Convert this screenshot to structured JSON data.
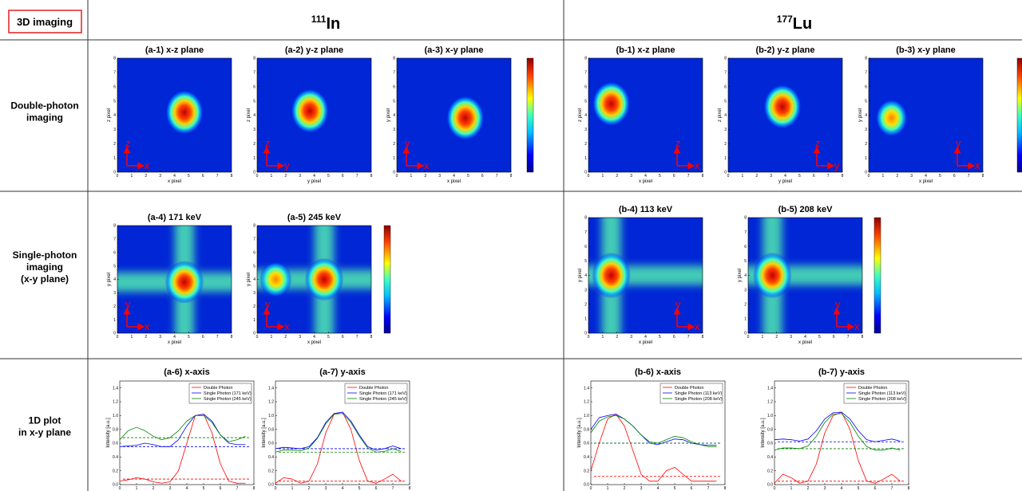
{
  "corner_label": "3D imaging",
  "rows": [
    {
      "lines": [
        "Double-photon",
        "imaging"
      ]
    },
    {
      "lines": [
        "Single-photon",
        "imaging",
        "(x-y plane)"
      ]
    },
    {
      "lines": [
        "1D plot",
        "in x-y plane"
      ]
    }
  ],
  "sections": [
    {
      "isotope_mass": "111",
      "isotope": "In",
      "double_photon": [
        {
          "type": "heatmap",
          "title": "(a-1) x-z plane",
          "xlabel": "x pixel",
          "ylabel": "z pixel",
          "xlim": [
            0,
            8
          ],
          "ylim": [
            0,
            8
          ],
          "xticks": [
            0,
            1,
            2,
            3,
            4,
            5,
            6,
            7,
            8
          ],
          "yticks": [
            0,
            1,
            2,
            3,
            4,
            5,
            6,
            7,
            8
          ],
          "peaks": [
            [
              4.7,
              4.2,
              1
            ]
          ],
          "arrow_labels": [
            "z",
            "x"
          ]
        },
        {
          "type": "heatmap",
          "title": "(a-2) y-z plane",
          "xlabel": "y pixel",
          "ylabel": "z pixel",
          "xlim": [
            0,
            8
          ],
          "ylim": [
            0,
            8
          ],
          "xticks": [
            0,
            1,
            2,
            3,
            4,
            5,
            6,
            7,
            8
          ],
          "yticks": [
            0,
            1,
            2,
            3,
            4,
            5,
            6,
            7,
            8
          ],
          "peaks": [
            [
              3.7,
              4.3,
              1
            ]
          ],
          "arrow_labels": [
            "z",
            "y"
          ]
        },
        {
          "type": "heatmap",
          "title": "(a-3) x-y plane",
          "xlabel": "x pixel",
          "ylabel": "y pixel",
          "xlim": [
            0,
            8
          ],
          "ylim": [
            0,
            8
          ],
          "xticks": [
            0,
            1,
            2,
            3,
            4,
            5,
            6,
            7,
            8
          ],
          "yticks": [
            0,
            1,
            2,
            3,
            4,
            5,
            6,
            7,
            8
          ],
          "peaks": [
            [
              4.8,
              3.8,
              1
            ]
          ],
          "arrow_labels": [
            "y",
            "x"
          ]
        }
      ],
      "single_photon": [
        {
          "type": "heatmap",
          "title": "(a-4) 171 keV",
          "xlabel": "x pixel",
          "ylabel": "y pixel",
          "xlim": [
            0,
            8
          ],
          "ylim": [
            0,
            8
          ],
          "xticks": [
            0,
            1,
            2,
            3,
            4,
            5,
            6,
            7,
            8
          ],
          "yticks": [
            0,
            1,
            2,
            3,
            4,
            5,
            6,
            7,
            8
          ],
          "bands": [
            4.7,
            3.8
          ],
          "peaks": [
            [
              4.7,
              3.8,
              1
            ]
          ],
          "arrow_labels": [
            "y",
            "x"
          ]
        },
        {
          "type": "heatmap",
          "title": "(a-5) 245 keV",
          "xlabel": "x pixel",
          "ylabel": "y pixel",
          "xlim": [
            0,
            8
          ],
          "ylim": [
            0,
            8
          ],
          "xticks": [
            0,
            1,
            2,
            3,
            4,
            5,
            6,
            7,
            8
          ],
          "yticks": [
            0,
            1,
            2,
            3,
            4,
            5,
            6,
            7,
            8
          ],
          "bands": [
            4.7,
            4
          ],
          "peaks": [
            [
              4.7,
              4,
              1
            ],
            [
              1.3,
              4,
              0.6
            ]
          ],
          "arrow_labels": [
            "y",
            "x"
          ]
        }
      ],
      "profiles": [
        {
          "type": "line",
          "title": "(a-6) x-axis",
          "ylabel": "Intensity [a.u.]",
          "x": [
            0,
            0.5,
            1,
            1.5,
            2,
            2.5,
            3,
            3.5,
            4,
            4.5,
            5,
            5.5,
            6,
            6.5,
            7,
            7.5
          ],
          "xlim": [
            0,
            8
          ],
          "xticks": [
            0,
            1,
            2,
            3,
            4,
            5,
            6,
            7,
            8
          ],
          "ylim": [
            0,
            1.5
          ],
          "yticks": [
            {
              "value": 0,
              "label": "0.0"
            },
            0.2,
            0.4,
            0.6,
            0.8,
            {
              "value": 1,
              "label": "1.0"
            },
            1.2,
            1.4
          ],
          "series": [
            {
              "name": "Double Photon",
              "color": "#ff0000",
              "mean": 0.08,
              "values": [
                0.05,
                0.07,
                0.1,
                0.08,
                0.04,
                0.02,
                0.04,
                0.2,
                0.6,
                1.0,
                1.02,
                0.75,
                0.3,
                0.05,
                0.02,
                0.02
              ]
            },
            {
              "name": "Single Photon (171 keV)",
              "color": "#0000ff",
              "mean": 0.55,
              "values": [
                0.55,
                0.56,
                0.57,
                0.6,
                0.58,
                0.55,
                0.55,
                0.65,
                0.85,
                1.0,
                1.02,
                0.92,
                0.72,
                0.6,
                0.58,
                0.58
              ]
            },
            {
              "name": "Single Photon (245 keV)",
              "color": "#008000",
              "mean": 0.68,
              "values": [
                0.65,
                0.78,
                0.83,
                0.78,
                0.7,
                0.65,
                0.68,
                0.78,
                0.92,
                1.0,
                1.0,
                0.9,
                0.72,
                0.62,
                0.65,
                0.7
              ]
            }
          ]
        },
        {
          "type": "line",
          "title": "(a-7) y-axis",
          "ylabel": "Intensity [a.u.]",
          "x": [
            0,
            0.5,
            1,
            1.5,
            2,
            2.5,
            3,
            3.5,
            4,
            4.5,
            5,
            5.5,
            6,
            6.5,
            7,
            7.5
          ],
          "xlim": [
            0,
            8
          ],
          "xticks": [
            0,
            1,
            2,
            3,
            4,
            5,
            6,
            7,
            8
          ],
          "ylim": [
            0,
            1.5
          ],
          "yticks": [
            {
              "value": 0,
              "label": "0.0"
            },
            0.2,
            0.4,
            0.6,
            0.8,
            {
              "value": 1,
              "label": "1.0"
            },
            1.2,
            1.4
          ],
          "series": [
            {
              "name": "Double Photon",
              "color": "#ff0000",
              "mean": 0.05,
              "values": [
                0.02,
                0.1,
                0.08,
                0.02,
                0.05,
                0.3,
                0.75,
                1.02,
                1.05,
                0.8,
                0.35,
                0.05,
                0.02,
                0.08,
                0.15,
                0.05
              ]
            },
            {
              "name": "Single Photon (171 keV)",
              "color": "#0000ff",
              "mean": 0.52,
              "values": [
                0.52,
                0.54,
                0.53,
                0.52,
                0.55,
                0.68,
                0.9,
                1.03,
                1.05,
                0.92,
                0.72,
                0.55,
                0.5,
                0.52,
                0.56,
                0.52
              ]
            },
            {
              "name": "Single Photon (245 keV)",
              "color": "#008000",
              "mean": 0.47,
              "values": [
                0.47,
                0.5,
                0.5,
                0.49,
                0.53,
                0.67,
                0.88,
                1.02,
                1.03,
                0.9,
                0.7,
                0.53,
                0.47,
                0.48,
                0.52,
                0.48
              ]
            }
          ]
        }
      ]
    },
    {
      "isotope_mass": "177",
      "isotope": "Lu",
      "double_photon": [
        {
          "type": "heatmap",
          "title": "(b-1) x-z plane",
          "xlabel": "x pixel",
          "ylabel": "z pixel",
          "xlim": [
            0,
            8
          ],
          "ylim": [
            0,
            8
          ],
          "xticks": [
            0,
            1,
            2,
            3,
            4,
            5,
            6,
            7,
            8
          ],
          "yticks": [
            0,
            1,
            2,
            3,
            4,
            5,
            6,
            7,
            8
          ],
          "peaks": [
            [
              1.6,
              4.8,
              1
            ]
          ],
          "arrow_labels": [
            "z",
            "x"
          ]
        },
        {
          "type": "heatmap",
          "title": "(b-2) y-z plane",
          "xlabel": "y pixel",
          "ylabel": "z pixel",
          "xlim": [
            0,
            8
          ],
          "ylim": [
            0,
            8
          ],
          "xticks": [
            0,
            1,
            2,
            3,
            4,
            5,
            6,
            7,
            8
          ],
          "yticks": [
            0,
            1,
            2,
            3,
            4,
            5,
            6,
            7,
            8
          ],
          "peaks": [
            [
              3.8,
              4.6,
              1
            ]
          ],
          "arrow_labels": [
            "z",
            "y"
          ]
        },
        {
          "type": "heatmap",
          "title": "(b-3) x-y plane",
          "xlabel": "x pixel",
          "ylabel": "y pixel",
          "xlim": [
            0,
            8
          ],
          "ylim": [
            0,
            8
          ],
          "xticks": [
            0,
            1,
            2,
            3,
            4,
            5,
            6,
            7,
            8
          ],
          "yticks": [
            0,
            1,
            2,
            3,
            4,
            5,
            6,
            7,
            8
          ],
          "peaks": [
            [
              1.6,
              3.8,
              0.6
            ]
          ],
          "arrow_labels": [
            "y",
            "x"
          ]
        }
      ],
      "single_photon": [
        {
          "type": "heatmap",
          "title": "(b-4) 113 keV",
          "xlabel": "x pixel",
          "ylabel": "y pixel",
          "xlim": [
            0,
            8
          ],
          "ylim": [
            0,
            8
          ],
          "xticks": [
            0,
            1,
            2,
            3,
            4,
            5,
            6,
            7,
            8
          ],
          "yticks": [
            0,
            1,
            2,
            3,
            4,
            5,
            6,
            7,
            8
          ],
          "bands": [
            1.6,
            4
          ],
          "peaks": [
            [
              1.6,
              4,
              1
            ]
          ],
          "arrow_labels": [
            "y",
            "x"
          ]
        },
        {
          "type": "heatmap",
          "title": "(b-5) 208 keV",
          "xlabel": "x pixel",
          "ylabel": "y pixel",
          "xlim": [
            0,
            8
          ],
          "ylim": [
            0,
            8
          ],
          "xticks": [
            0,
            1,
            2,
            3,
            4,
            5,
            6,
            7,
            8
          ],
          "yticks": [
            0,
            1,
            2,
            3,
            4,
            5,
            6,
            7,
            8
          ],
          "bands": [
            1.7,
            4
          ],
          "peaks": [
            [
              1.7,
              4,
              1
            ]
          ],
          "arrow_labels": [
            "y",
            "x"
          ]
        }
      ],
      "profiles": [
        {
          "type": "line",
          "title": "(b-6) x-axis",
          "ylabel": "Intensity [a.u.]",
          "x": [
            0,
            0.5,
            1,
            1.5,
            2,
            2.5,
            3,
            3.5,
            4,
            4.5,
            5,
            5.5,
            6,
            6.5,
            7,
            7.5
          ],
          "xlim": [
            0,
            8
          ],
          "xticks": [
            0,
            1,
            2,
            3,
            4,
            5,
            6,
            7,
            8
          ],
          "ylim": [
            0,
            1.5
          ],
          "yticks": [
            {
              "value": 0,
              "label": "0.0"
            },
            0.2,
            0.4,
            0.6,
            0.8,
            {
              "value": 1,
              "label": "1.0"
            },
            1.2,
            1.4
          ],
          "series": [
            {
              "name": "Double Photon",
              "color": "#ff0000",
              "mean": 0.12,
              "values": [
                0.2,
                0.6,
                0.95,
                1.02,
                0.85,
                0.5,
                0.15,
                0.05,
                0.05,
                0.2,
                0.25,
                0.15,
                0.05,
                0.05,
                0.05,
                0.05
              ]
            },
            {
              "name": "Single Photon (113 keV)",
              "color": "#0000ff",
              "mean": 0.6,
              "values": [
                0.8,
                0.97,
                1.0,
                1.02,
                0.95,
                0.85,
                0.72,
                0.6,
                0.58,
                0.62,
                0.66,
                0.65,
                0.6,
                0.58,
                0.57,
                0.57
              ]
            },
            {
              "name": "Single Photon (208 keV)",
              "color": "#008000",
              "mean": 0.6,
              "values": [
                0.75,
                0.92,
                0.98,
                1.0,
                0.95,
                0.85,
                0.72,
                0.62,
                0.6,
                0.65,
                0.7,
                0.68,
                0.62,
                0.58,
                0.55,
                0.55
              ]
            }
          ]
        },
        {
          "type": "line",
          "title": "(b-7) y-axis",
          "ylabel": "Intensity [a.u.]",
          "x": [
            0,
            0.5,
            1,
            1.5,
            2,
            2.5,
            3,
            3.5,
            4,
            4.5,
            5,
            5.5,
            6,
            6.5,
            7,
            7.5
          ],
          "xlim": [
            0,
            8
          ],
          "xticks": [
            0,
            1,
            2,
            3,
            4,
            5,
            6,
            7,
            8
          ],
          "ylim": [
            0,
            1.5
          ],
          "yticks": [
            {
              "value": 0,
              "label": "0.0"
            },
            0.2,
            0.4,
            0.6,
            0.8,
            {
              "value": 1,
              "label": "1.0"
            },
            1.2,
            1.4
          ],
          "series": [
            {
              "name": "Double Photon",
              "color": "#ff0000",
              "mean": 0.05,
              "values": [
                0.02,
                0.15,
                0.1,
                0.02,
                0.05,
                0.3,
                0.75,
                1.0,
                1.05,
                0.8,
                0.35,
                0.05,
                0.02,
                0.08,
                0.15,
                0.05
              ]
            },
            {
              "name": "Single Photon (113 keV)",
              "color": "#0000ff",
              "mean": 0.62,
              "values": [
                0.65,
                0.66,
                0.65,
                0.63,
                0.66,
                0.78,
                0.95,
                1.04,
                1.05,
                0.95,
                0.78,
                0.65,
                0.62,
                0.64,
                0.66,
                0.63
              ]
            },
            {
              "name": "Single Photon (208 keV)",
              "color": "#008000",
              "mean": 0.52,
              "values": [
                0.5,
                0.53,
                0.53,
                0.52,
                0.56,
                0.7,
                0.9,
                1.02,
                1.03,
                0.9,
                0.7,
                0.55,
                0.5,
                0.5,
                0.53,
                0.5
              ]
            }
          ]
        }
      ]
    }
  ]
}
